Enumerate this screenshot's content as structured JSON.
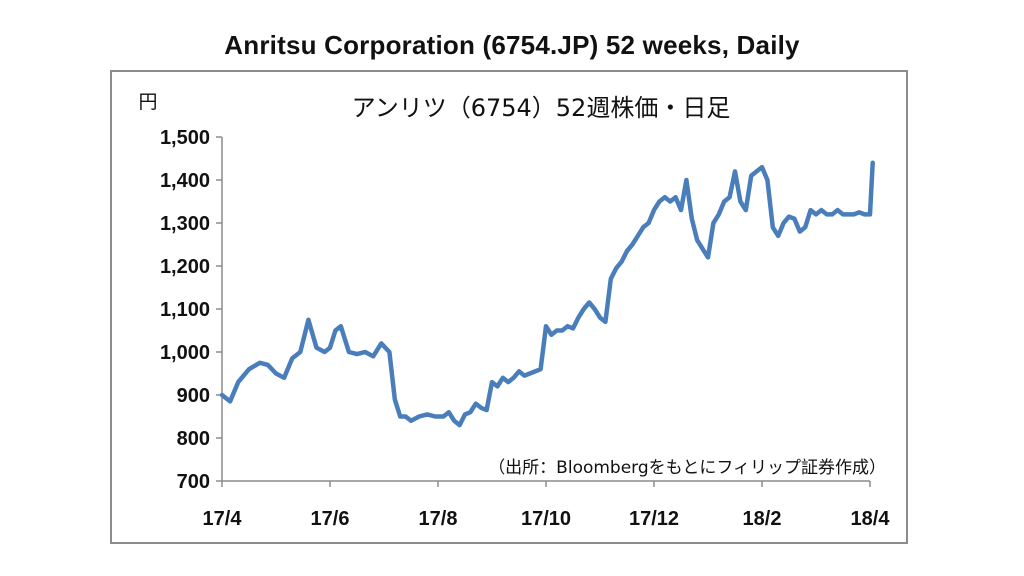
{
  "header": {
    "title": "Anritsu Corporation (6754.JP) 52 weeks, Daily"
  },
  "chart_data": {
    "type": "line",
    "title": "アンリツ（6754）52週株価・日足",
    "ylabel": "円",
    "source": "（出所：Bloombergをもとにフィリップ証券作成）",
    "ylim": [
      700,
      1500
    ],
    "yticks": [
      "1,500",
      "1,400",
      "1,300",
      "1,200",
      "1,100",
      "1,000",
      "900",
      "800",
      "700"
    ],
    "ytick_values": [
      1500,
      1400,
      1300,
      1200,
      1100,
      1000,
      900,
      800,
      700
    ],
    "xticks": [
      "17/4",
      "17/6",
      "17/8",
      "17/10",
      "17/12",
      "18/2",
      "18/4"
    ],
    "xlim": [
      0,
      12
    ],
    "grid": false,
    "line_color": "#4a7ebb",
    "series": [
      {
        "x": [
          0.0,
          0.15,
          0.3,
          0.5,
          0.7,
          0.85,
          1.0,
          1.15,
          1.3,
          1.45,
          1.6,
          1.75,
          1.9,
          2.0,
          2.1,
          2.2,
          2.35,
          2.5,
          2.65,
          2.8,
          2.95,
          3.1,
          3.2,
          3.3,
          3.4,
          3.5,
          3.65,
          3.8,
          3.95,
          4.1,
          4.2,
          4.3,
          4.4,
          4.5,
          4.6,
          4.7,
          4.8,
          4.9,
          5.0,
          5.1,
          5.2,
          5.3,
          5.4,
          5.5,
          5.6,
          5.7,
          5.8,
          5.9,
          6.0,
          6.1,
          6.2,
          6.3,
          6.4,
          6.5,
          6.6,
          6.7,
          6.8,
          6.9,
          7.0,
          7.1,
          7.2,
          7.3,
          7.4,
          7.5,
          7.6,
          7.7,
          7.8,
          7.9,
          8.0,
          8.1,
          8.2,
          8.3,
          8.4,
          8.5,
          8.6,
          8.7,
          8.8,
          8.9,
          9.0,
          9.1,
          9.2,
          9.3,
          9.4,
          9.5,
          9.6,
          9.7,
          9.8,
          9.9,
          10.0,
          10.1,
          10.2,
          10.3,
          10.4,
          10.5,
          10.6,
          10.7,
          10.8,
          10.9,
          11.0,
          11.1,
          11.2,
          11.3,
          11.4,
          11.5,
          11.6,
          11.7,
          11.8,
          11.9,
          12.0,
          12.05
        ],
        "y": [
          900,
          885,
          930,
          960,
          975,
          970,
          950,
          940,
          985,
          1000,
          1075,
          1010,
          1000,
          1010,
          1050,
          1060,
          1000,
          995,
          1000,
          990,
          1020,
          1000,
          890,
          850,
          850,
          840,
          850,
          855,
          850,
          850,
          860,
          840,
          830,
          855,
          860,
          880,
          870,
          865,
          930,
          920,
          940,
          930,
          940,
          955,
          945,
          950,
          955,
          960,
          1060,
          1040,
          1050,
          1050,
          1060,
          1055,
          1080,
          1100,
          1115,
          1100,
          1080,
          1070,
          1170,
          1195,
          1210,
          1235,
          1250,
          1270,
          1290,
          1300,
          1330,
          1350,
          1360,
          1350,
          1360,
          1330,
          1400,
          1310,
          1260,
          1240,
          1220,
          1300,
          1320,
          1350,
          1360,
          1420,
          1350,
          1330,
          1410,
          1420,
          1430,
          1400,
          1290,
          1270,
          1300,
          1315,
          1310,
          1280,
          1290,
          1330,
          1320,
          1330,
          1320,
          1320,
          1330,
          1320,
          1320,
          1320,
          1325,
          1320,
          1320,
          1440
        ]
      }
    ]
  }
}
